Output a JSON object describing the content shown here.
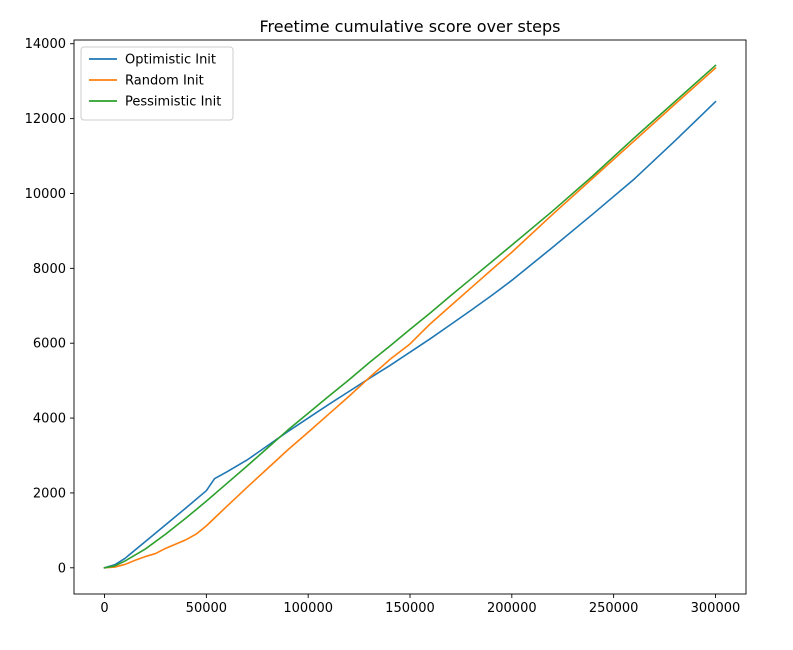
{
  "chart_data": {
    "type": "line",
    "title": "Freetime cumulative score over steps",
    "xlabel": "",
    "ylabel": "",
    "xlim": [
      -15000,
      315000
    ],
    "ylim": [
      -700,
      14100
    ],
    "xticks": [
      0,
      50000,
      100000,
      150000,
      200000,
      250000,
      300000
    ],
    "xtick_labels": [
      "0",
      "50000",
      "100000",
      "150000",
      "200000",
      "250000",
      "300000"
    ],
    "yticks": [
      0,
      2000,
      4000,
      6000,
      8000,
      10000,
      12000,
      14000
    ],
    "ytick_labels": [
      "0",
      "2000",
      "4000",
      "6000",
      "8000",
      "10000",
      "12000",
      "14000"
    ],
    "grid": false,
    "legend_position": "top-left",
    "series": [
      {
        "name": "Optimistic Init",
        "color": "#1f77b4",
        "x": [
          0,
          5000,
          10000,
          20000,
          30000,
          40000,
          50000,
          54000,
          60000,
          70000,
          80000,
          90000,
          100000,
          110000,
          120000,
          130000,
          140000,
          150000,
          160000,
          170000,
          180000,
          190000,
          200000,
          220000,
          240000,
          260000,
          280000,
          300000
        ],
        "y": [
          0,
          80,
          250,
          700,
          1150,
          1600,
          2060,
          2380,
          2560,
          2880,
          3260,
          3640,
          4000,
          4360,
          4710,
          5060,
          5400,
          5760,
          6120,
          6500,
          6880,
          7270,
          7680,
          8560,
          9460,
          10380,
          11400,
          12450
        ]
      },
      {
        "name": "Random Init",
        "color": "#ff7f0e",
        "x": [
          0,
          5000,
          10000,
          15000,
          20000,
          25000,
          30000,
          40000,
          45000,
          50000,
          55000,
          60000,
          70000,
          80000,
          90000,
          100000,
          110000,
          120000,
          130000,
          140000,
          150000,
          160000,
          170000,
          180000,
          190000,
          200000,
          220000,
          240000,
          260000,
          280000,
          300000
        ],
        "y": [
          0,
          20,
          90,
          200,
          300,
          380,
          520,
          750,
          900,
          1120,
          1380,
          1640,
          2150,
          2650,
          3150,
          3620,
          4100,
          4580,
          5080,
          5560,
          5980,
          6520,
          7000,
          7480,
          7960,
          8430,
          9440,
          10420,
          11400,
          12380,
          13350
        ]
      },
      {
        "name": "Pessimistic Init",
        "color": "#2ca02c",
        "x": [
          0,
          5000,
          10000,
          20000,
          30000,
          40000,
          50000,
          60000,
          70000,
          80000,
          90000,
          100000,
          110000,
          120000,
          130000,
          140000,
          150000,
          160000,
          170000,
          180000,
          190000,
          200000,
          220000,
          240000,
          260000,
          280000,
          300000
        ],
        "y": [
          0,
          50,
          180,
          500,
          900,
          1330,
          1780,
          2250,
          2720,
          3200,
          3680,
          4130,
          4580,
          5020,
          5480,
          5920,
          6370,
          6810,
          7270,
          7720,
          8170,
          8620,
          9530,
          10480,
          11480,
          12450,
          13420
        ]
      }
    ]
  }
}
